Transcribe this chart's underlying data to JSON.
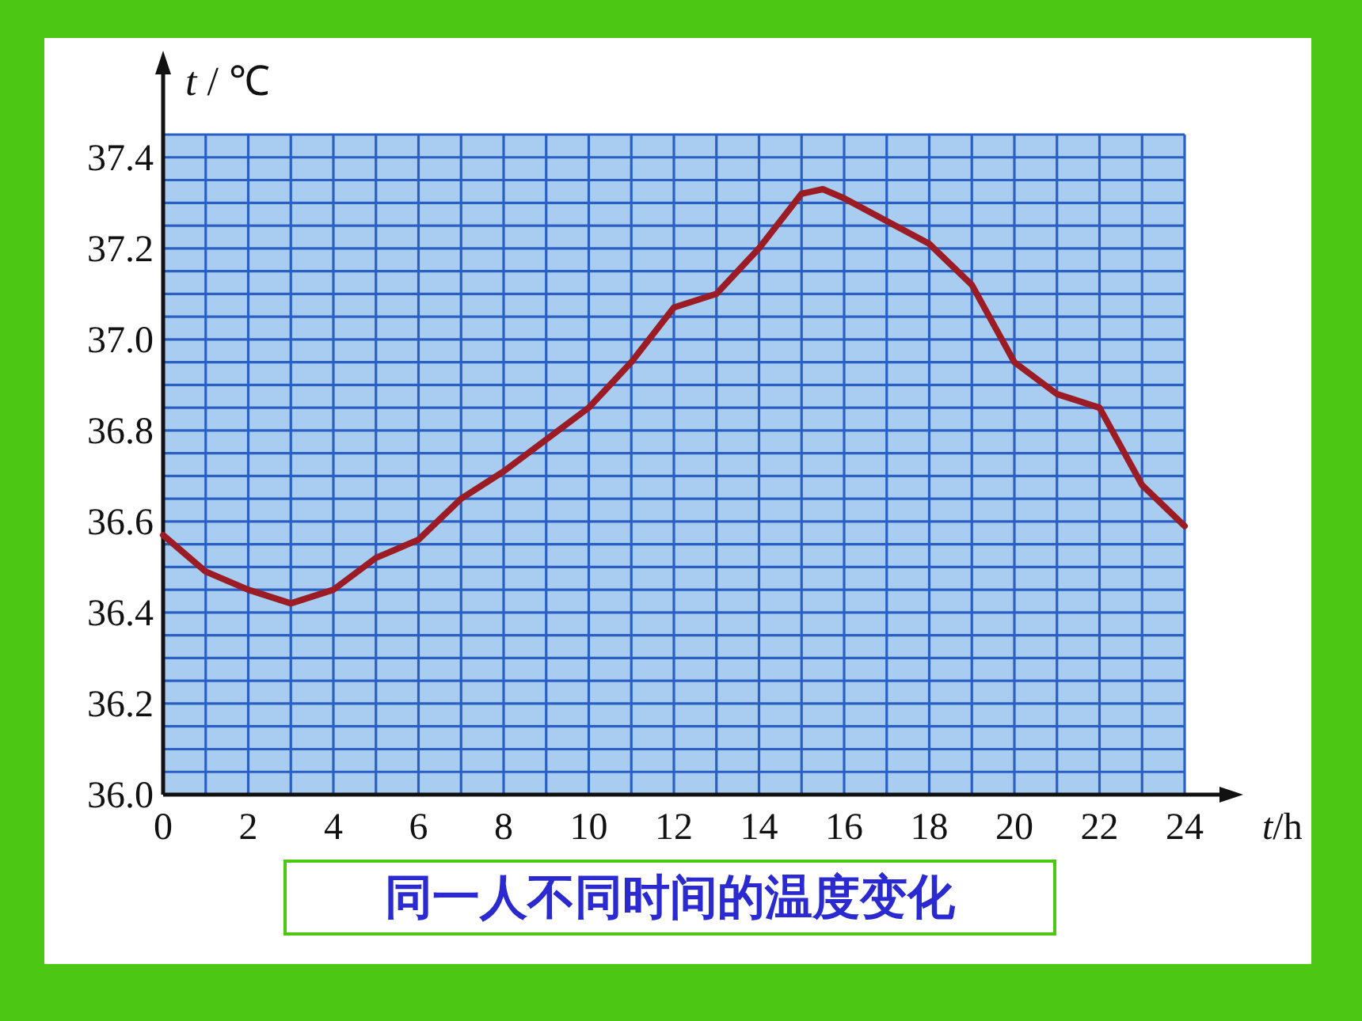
{
  "chart_data": {
    "type": "line",
    "x": [
      0,
      1,
      2,
      3,
      4,
      5,
      6,
      7,
      8,
      9,
      10,
      11,
      12,
      13,
      14,
      15,
      15.5,
      16,
      17,
      18,
      19,
      20,
      21,
      22,
      23,
      24
    ],
    "series": [
      {
        "color": "#9b1c24",
        "values": [
          36.57,
          36.49,
          36.45,
          36.42,
          36.45,
          36.52,
          36.56,
          36.65,
          36.71,
          36.78,
          36.85,
          36.95,
          37.07,
          37.1,
          37.2,
          37.32,
          37.33,
          37.31,
          37.26,
          37.21,
          37.12,
          36.95,
          36.88,
          36.85,
          36.68,
          36.59
        ]
      }
    ],
    "xlim": [
      0,
      24
    ],
    "ylim": [
      36.0,
      37.45
    ],
    "xticks": [
      0,
      2,
      4,
      6,
      8,
      10,
      12,
      14,
      16,
      18,
      20,
      22,
      24
    ],
    "yticks": [
      {
        "value": 36.0,
        "label": "36.0"
      },
      {
        "value": 36.2,
        "label": "36.2"
      },
      {
        "value": 36.4,
        "label": "36.4"
      },
      {
        "value": 36.6,
        "label": "36.6"
      },
      {
        "value": 36.8,
        "label": "36.8"
      },
      {
        "value": 37.0,
        "label": "37.0"
      },
      {
        "value": 37.2,
        "label": "37.2"
      },
      {
        "value": 37.4,
        "label": "37.4"
      }
    ],
    "xlabel": "*t*/h",
    "ylabel": "*t* / ℃",
    "grid": true,
    "marker": "none",
    "line_style": "solid",
    "annotations": [
      "同一人不同时间的温度变化"
    ]
  }
}
